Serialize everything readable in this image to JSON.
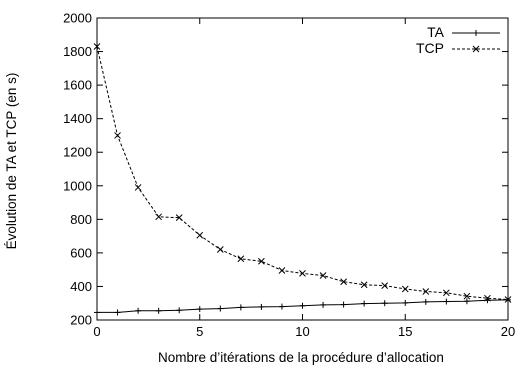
{
  "chart_data": {
    "type": "line",
    "xlabel": "Nombre d’itérations de la procédure d’allocation",
    "ylabel": "Évolution de TA et TCP (en s)",
    "xlim": [
      0,
      20
    ],
    "ylim": [
      200,
      2000
    ],
    "x_ticks": [
      0,
      5,
      10,
      15,
      20
    ],
    "y_ticks": [
      200,
      400,
      600,
      800,
      1000,
      1200,
      1400,
      1600,
      1800,
      2000
    ],
    "x_tick_labels": [
      "0",
      "5",
      "10",
      "15",
      "20"
    ],
    "y_tick_labels": [
      "200",
      "400",
      "600",
      "800",
      "1000",
      "1200",
      "1400",
      "1600",
      "1800",
      "2000"
    ],
    "grid": false,
    "legend_position": "top-right",
    "x": [
      0,
      1,
      2,
      3,
      4,
      5,
      6,
      7,
      8,
      9,
      10,
      11,
      12,
      13,
      14,
      15,
      16,
      17,
      18,
      19,
      20
    ],
    "series": [
      {
        "name": "TA",
        "line_style": "solid",
        "marker": "plus",
        "color": "#000000",
        "values": [
          245,
          245,
          255,
          255,
          258,
          265,
          268,
          275,
          278,
          280,
          285,
          290,
          292,
          298,
          300,
          302,
          308,
          310,
          312,
          318,
          320
        ]
      },
      {
        "name": "TCP",
        "line_style": "dashed",
        "marker": "cross",
        "color": "#000000",
        "values": [
          1830,
          1300,
          990,
          815,
          810,
          705,
          620,
          565,
          550,
          495,
          478,
          465,
          428,
          410,
          405,
          385,
          370,
          362,
          342,
          330,
          322
        ]
      }
    ]
  }
}
